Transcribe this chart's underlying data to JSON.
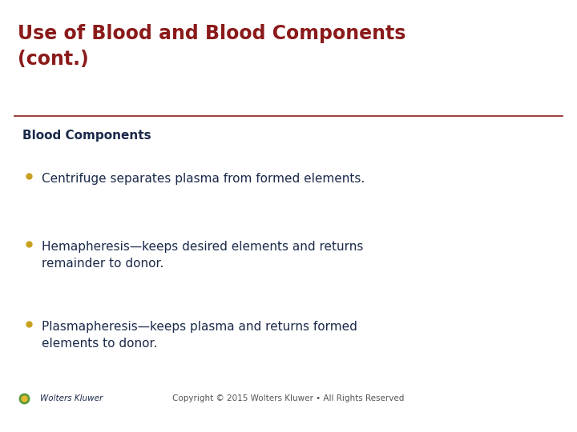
{
  "title_line1": "Use of Blood and Blood Components",
  "title_line2": "(cont.)",
  "title_color": "#8B1A1A",
  "section_heading": "Blood Components",
  "section_heading_color": "#1B2A4A",
  "bullet_color": "#C8A020",
  "bullet_text_color": "#1B2A4A",
  "bullets": [
    "Centrifuge separates plasma from formed elements.",
    "Hemapheresis—keeps desired elements and returns\nremainder to donor.",
    "Plasmapheresis—keeps plasma and returns formed\nelements to donor."
  ],
  "divider_color": "#8B1A1A",
  "background_color": "#FFFFFF",
  "footer_text": "Copyright © 2015 Wolters Kluwer • All Rights Reserved",
  "footer_brand": "Wolters Kluwer",
  "title_fontsize": 17,
  "section_fontsize": 11,
  "bullet_fontsize": 11,
  "footer_fontsize": 7.5
}
